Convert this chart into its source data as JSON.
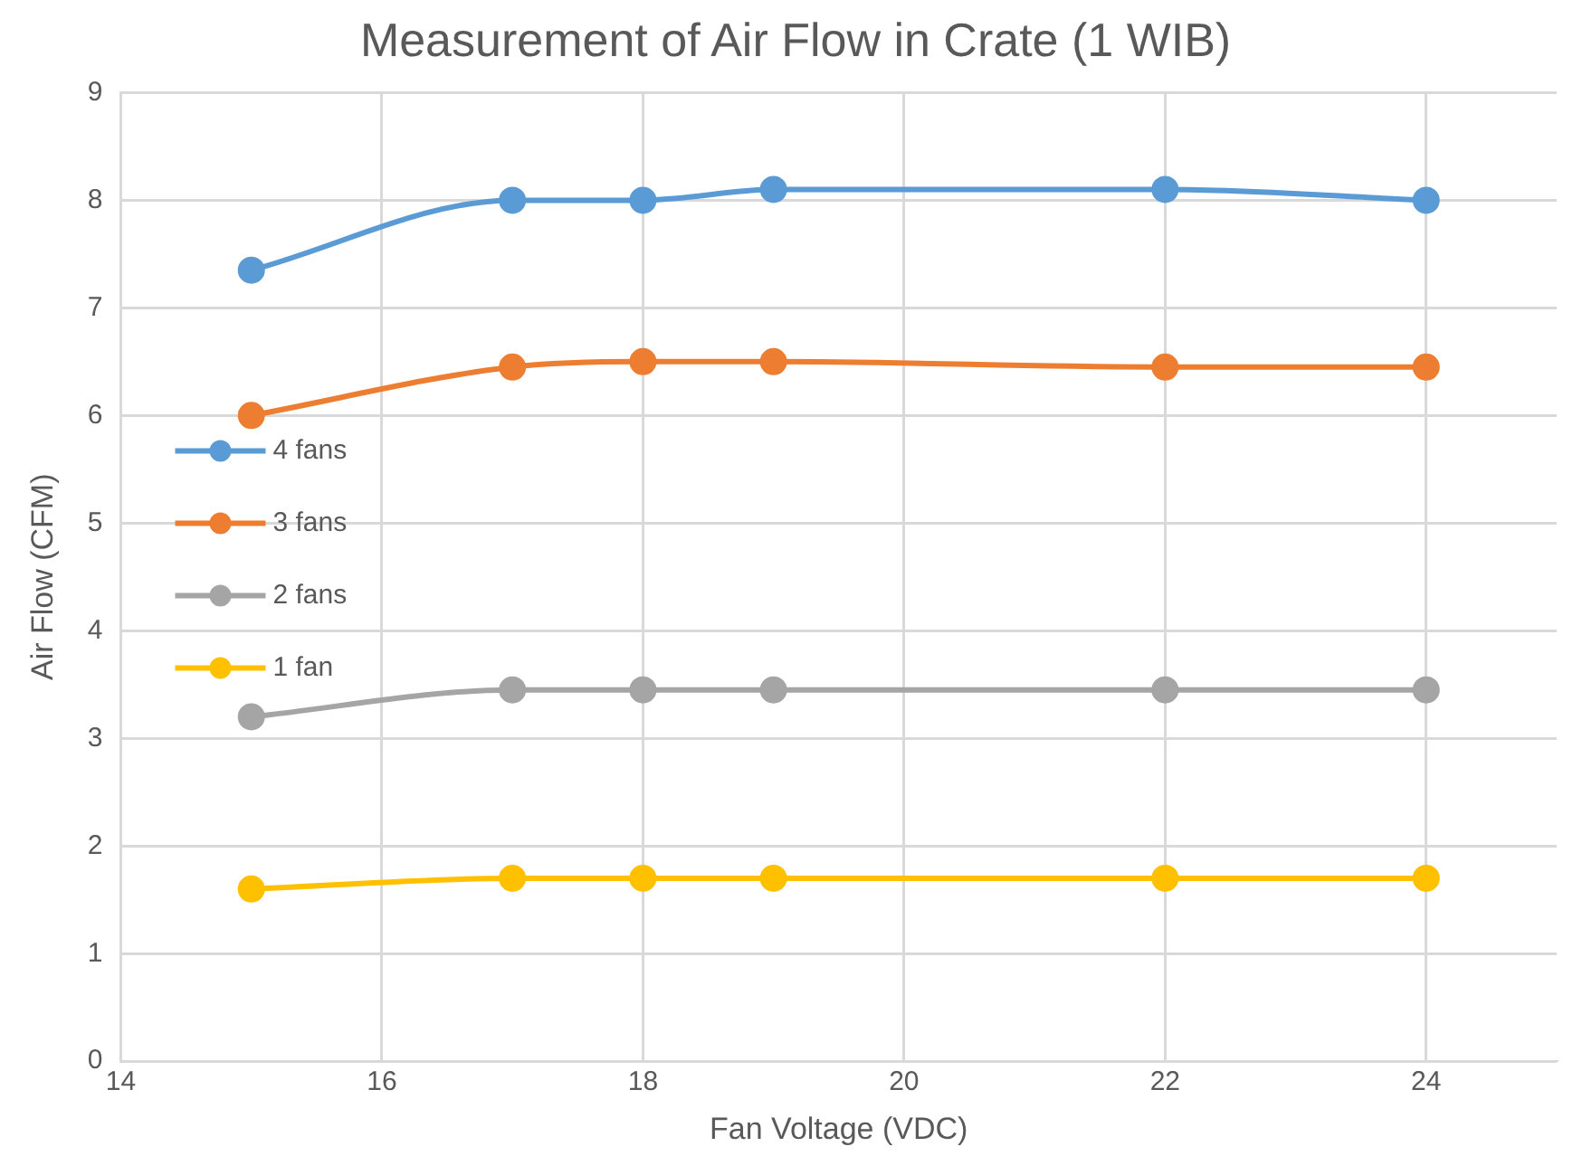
{
  "chart_data": {
    "type": "line",
    "title": "Measurement of Air Flow in Crate (1 WIB)",
    "xlabel": "Fan Voltage (VDC)",
    "ylabel": "Air Flow (CFM)",
    "x": [
      15,
      17,
      18,
      19,
      22,
      24
    ],
    "series": [
      {
        "name": "4 fans",
        "color": "#5b9bd5",
        "values": [
          7.35,
          8.0,
          8.0,
          8.1,
          8.1,
          8.0
        ]
      },
      {
        "name": "3 fans",
        "color": "#ed7d31",
        "values": [
          6.0,
          6.45,
          6.5,
          6.5,
          6.45,
          6.45
        ]
      },
      {
        "name": "2 fans",
        "color": "#a5a5a5",
        "values": [
          3.2,
          3.45,
          3.45,
          3.45,
          3.45,
          3.45
        ]
      },
      {
        "name": "1 fan",
        "color": "#ffc000",
        "values": [
          1.6,
          1.7,
          1.7,
          1.7,
          1.7,
          1.7
        ]
      }
    ],
    "xlim": [
      14,
      25
    ],
    "xticks": [
      14,
      16,
      18,
      20,
      22,
      24
    ],
    "ylim": [
      0,
      9
    ],
    "yticks": [
      0,
      1,
      2,
      3,
      4,
      5,
      6,
      7,
      8,
      9
    ],
    "grid": true,
    "legend": "left",
    "marker": "circle",
    "line_style": "solid"
  }
}
